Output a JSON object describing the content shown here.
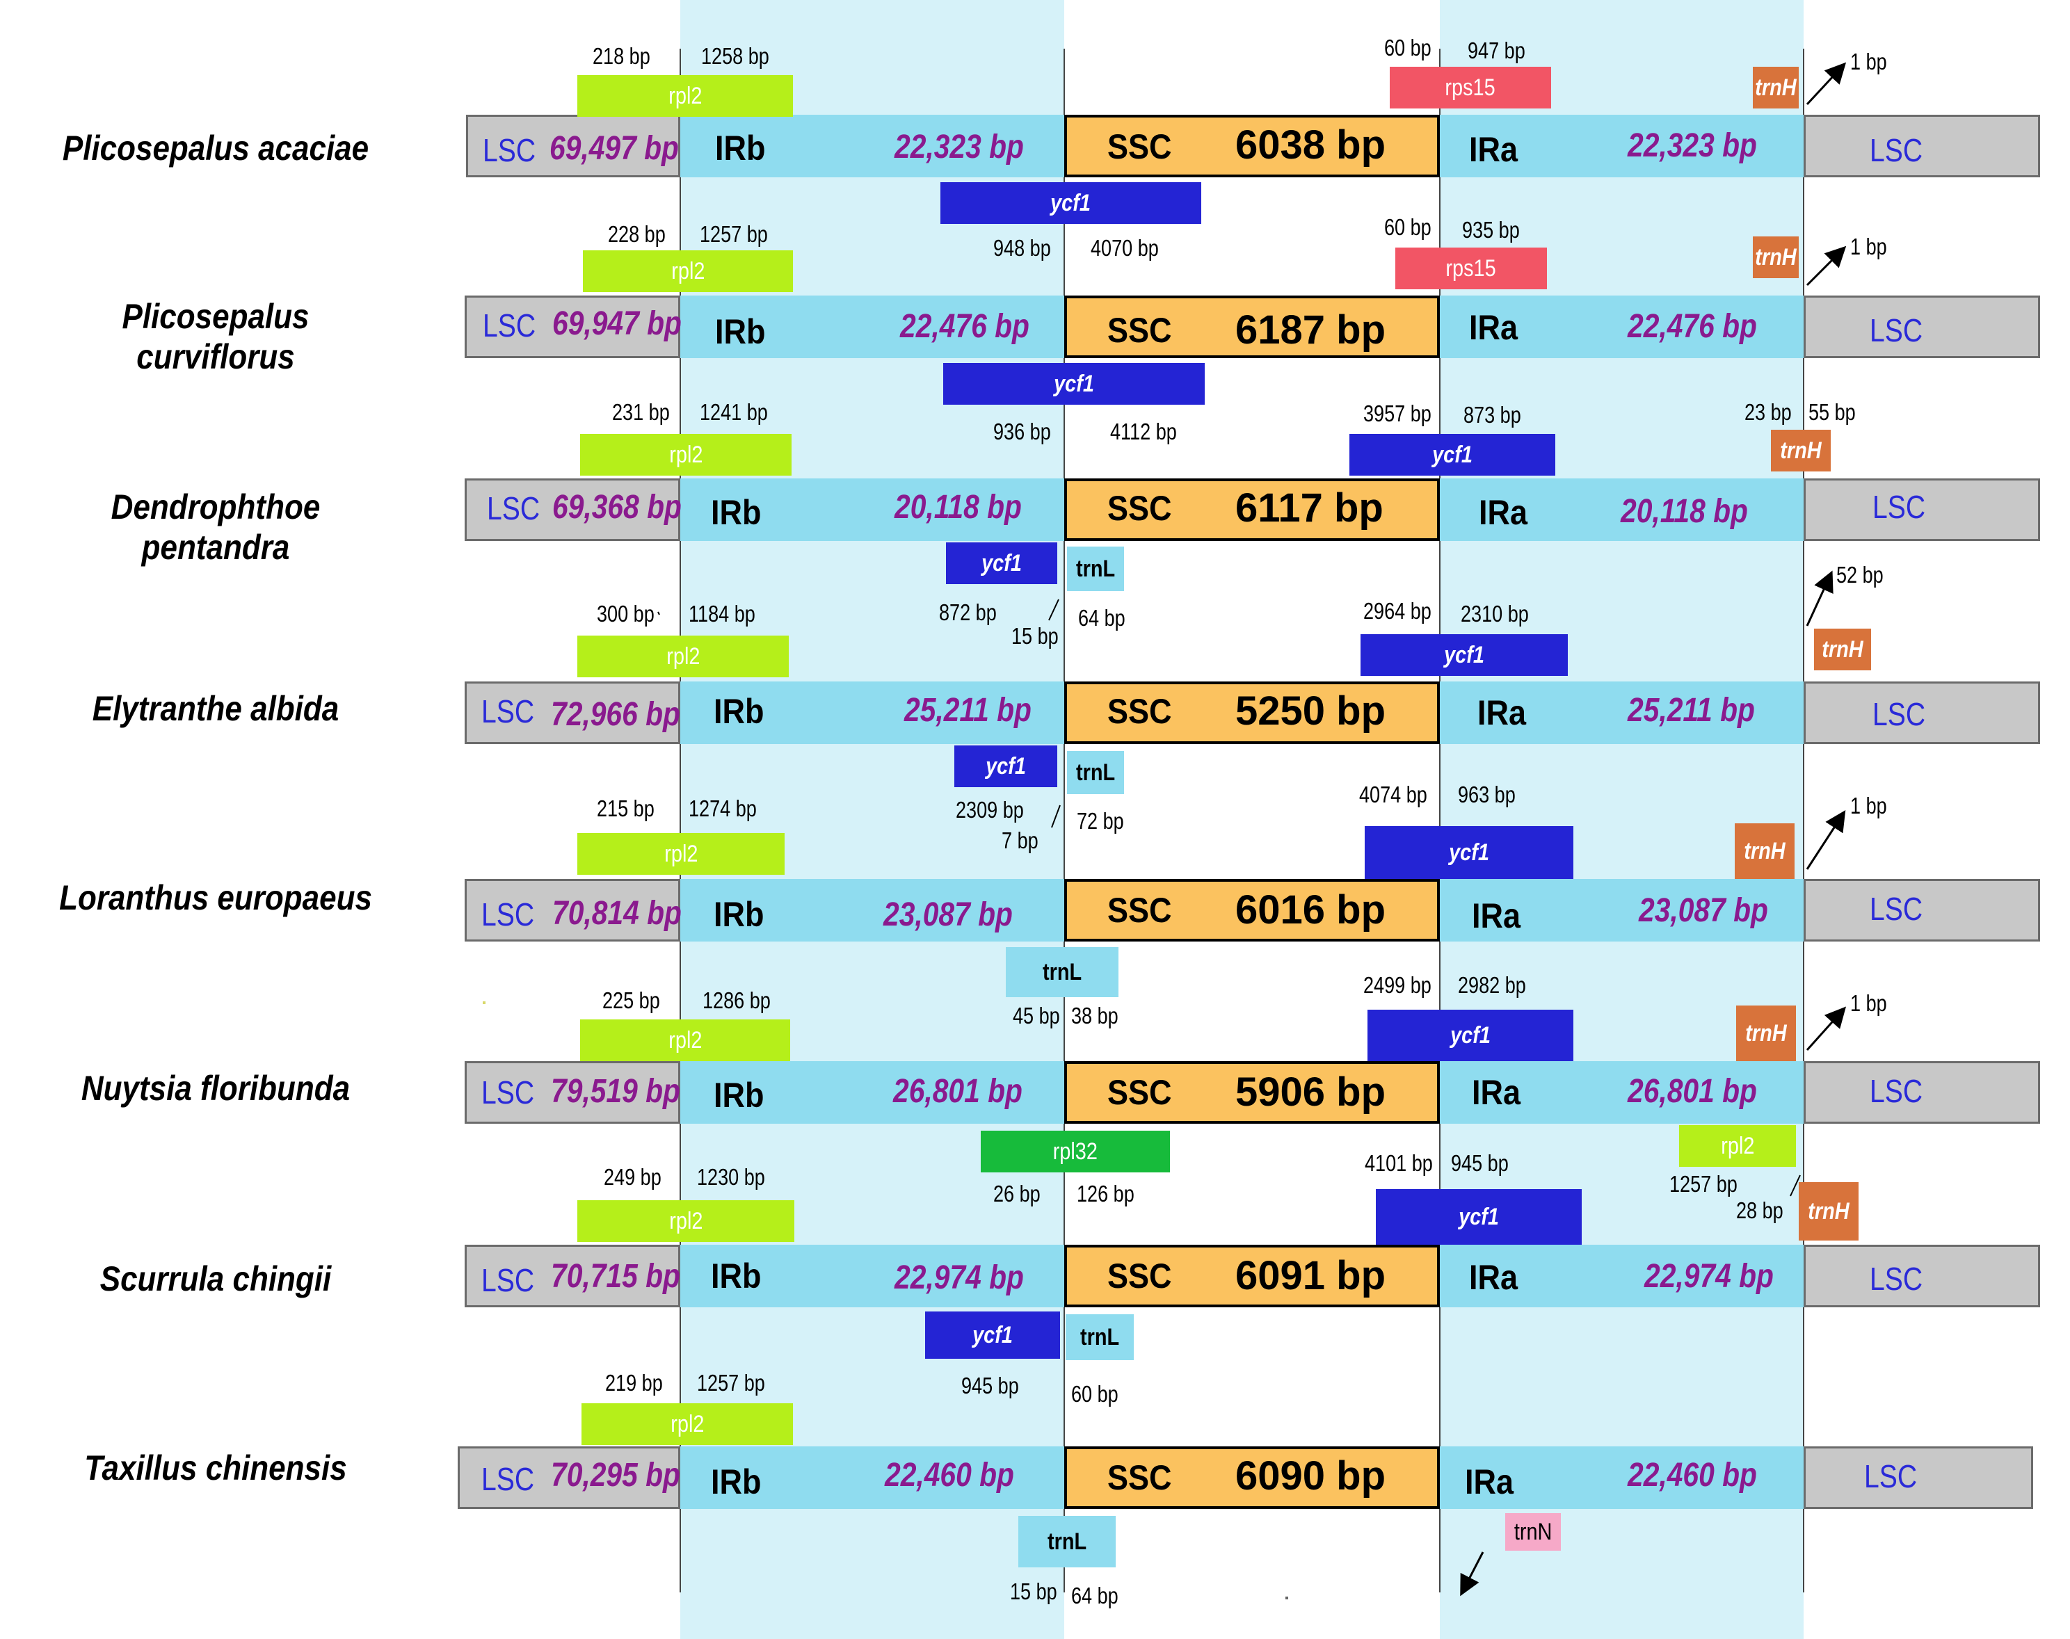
{
  "colors": {
    "lsc": "#c8c8c8",
    "ir": "#8fdcef",
    "ir_band": "#d6f2f9",
    "ssc": "#fbc25f",
    "ycf1": "#2424d4",
    "rpl2": "#b5ef1a",
    "rps15": "#f25565",
    "trnH": "#d8733b",
    "trnL": "#8fdcef",
    "rpl32": "#17bb3b",
    "trnN": "#f6a9c8",
    "species_label": "#8a1a8e",
    "lsc_label": "#2a2ad8"
  },
  "labels": {
    "LSC": "LSC",
    "IRb": "IRb",
    "SSC": "SSC",
    "IRa": "IRa"
  },
  "species": [
    {
      "name": "Plicosepalus acaciae",
      "lsc": "69,497 bp",
      "ir": "22,323 bp",
      "ssc": "6038 bp",
      "genes": [
        {
          "gene": "rpl2",
          "label": "rpl2"
        },
        {
          "gene": "rps15",
          "label": "rps15"
        },
        {
          "gene": "trnH",
          "label": "trnH"
        },
        {
          "gene": "ycf1",
          "label": "ycf1"
        }
      ],
      "bp": [
        "218 bp",
        "1258 bp",
        "60 bp",
        "947 bp",
        "1 bp",
        "948 bp",
        "4070 bp"
      ]
    },
    {
      "name": "Plicosepalus  curviflorus",
      "lsc": "69,947 bp",
      "ir": "22,476 bp",
      "ssc": "6187 bp",
      "genes": [
        {
          "gene": "rpl2",
          "label": "rpl2"
        },
        {
          "gene": "rps15",
          "label": "rps15"
        },
        {
          "gene": "trnH",
          "label": "trnH"
        },
        {
          "gene": "ycf1",
          "label": "ycf1"
        }
      ],
      "bp": [
        "228 bp",
        "1257 bp",
        "60 bp",
        "935 bp",
        "1 bp",
        "936 bp",
        "4112 bp"
      ]
    },
    {
      "name": "Dendrophthoe pentandra",
      "lsc": "69,368 bp",
      "ir": "20,118 bp",
      "ssc": "6117 bp",
      "genes": [
        {
          "gene": "rpl2",
          "label": "rpl2"
        },
        {
          "gene": "ycf1",
          "label": "ycf1"
        },
        {
          "gene": "trnH",
          "label": "trnH"
        },
        {
          "gene": "ycf1",
          "label": "ycf1"
        },
        {
          "gene": "trnL",
          "label": "trnL"
        }
      ],
      "bp": [
        "231 bp",
        "1241 bp",
        "3957 bp",
        "873 bp",
        "23 bp",
        "55 bp",
        "872 bp",
        "15 bp",
        "64 bp"
      ]
    },
    {
      "name": "Elytranthe albida",
      "lsc": "72,966 bp",
      "ir": "25,211 bp",
      "ssc": "5250 bp",
      "genes": [
        {
          "gene": "rpl2",
          "label": "rpl2"
        },
        {
          "gene": "ycf1",
          "label": "ycf1"
        },
        {
          "gene": "trnH",
          "label": "trnH"
        },
        {
          "gene": "ycf1",
          "label": "ycf1"
        },
        {
          "gene": "trnL",
          "label": "trnL"
        }
      ],
      "bp": [
        "300 bp",
        "1184 bp",
        "2964 bp",
        "2310 bp",
        "52 bp",
        "2309 bp",
        "7 bp",
        "72 bp"
      ]
    },
    {
      "name": "Loranthus europaeus",
      "lsc": "70,814 bp",
      "ir": "23,087 bp",
      "ssc": "6016 bp",
      "genes": [
        {
          "gene": "rpl2",
          "label": "rpl2"
        },
        {
          "gene": "ycf1",
          "label": "ycf1"
        },
        {
          "gene": "trnH",
          "label": "trnH"
        },
        {
          "gene": "trnL",
          "label": "trnL"
        }
      ],
      "bp": [
        "215 bp",
        "1274 bp",
        "4074 bp",
        "963 bp",
        "1 bp",
        "45 bp",
        "38 bp"
      ]
    },
    {
      "name": "Nuytsia floribunda",
      "lsc": "79,519 bp",
      "ir": "26,801 bp",
      "ssc": "5906 bp",
      "genes": [
        {
          "gene": "rpl2",
          "label": "rpl2"
        },
        {
          "gene": "ycf1",
          "label": "ycf1"
        },
        {
          "gene": "trnH",
          "label": "trnH"
        },
        {
          "gene": "rpl32",
          "label": "rpl32"
        },
        {
          "gene": "rpl2",
          "label": "rpl2"
        }
      ],
      "bp": [
        "225 bp",
        "1286 bp",
        "2499 bp",
        "2982 bp",
        "1 bp",
        "26 bp",
        "126 bp",
        "1257 bp",
        "28 bp"
      ]
    },
    {
      "name": "Scurrula chingii",
      "lsc": "70,715 bp",
      "ir": "22,974 bp",
      "ssc": "6091 bp",
      "genes": [
        {
          "gene": "rpl2",
          "label": "rpl2"
        },
        {
          "gene": "ycf1",
          "label": "ycf1"
        },
        {
          "gene": "trnH",
          "label": "trnH"
        },
        {
          "gene": "ycf1",
          "label": "ycf1"
        },
        {
          "gene": "trnL",
          "label": "trnL"
        }
      ],
      "bp": [
        "249 bp",
        "1230 bp",
        "4101 bp",
        "945 bp",
        "945 bp",
        "60 bp"
      ]
    },
    {
      "name": "Taxillus chinensis",
      "lsc": "70,295 bp",
      "ir": "22,460 bp",
      "ssc": "6090 bp",
      "genes": [
        {
          "gene": "rpl2",
          "label": "rpl2"
        },
        {
          "gene": "trnL",
          "label": "trnL"
        },
        {
          "gene": "trnN",
          "label": "trnN"
        }
      ],
      "bp": [
        "219 bp",
        "1257 bp",
        "15 bp",
        "64 bp"
      ]
    }
  ]
}
